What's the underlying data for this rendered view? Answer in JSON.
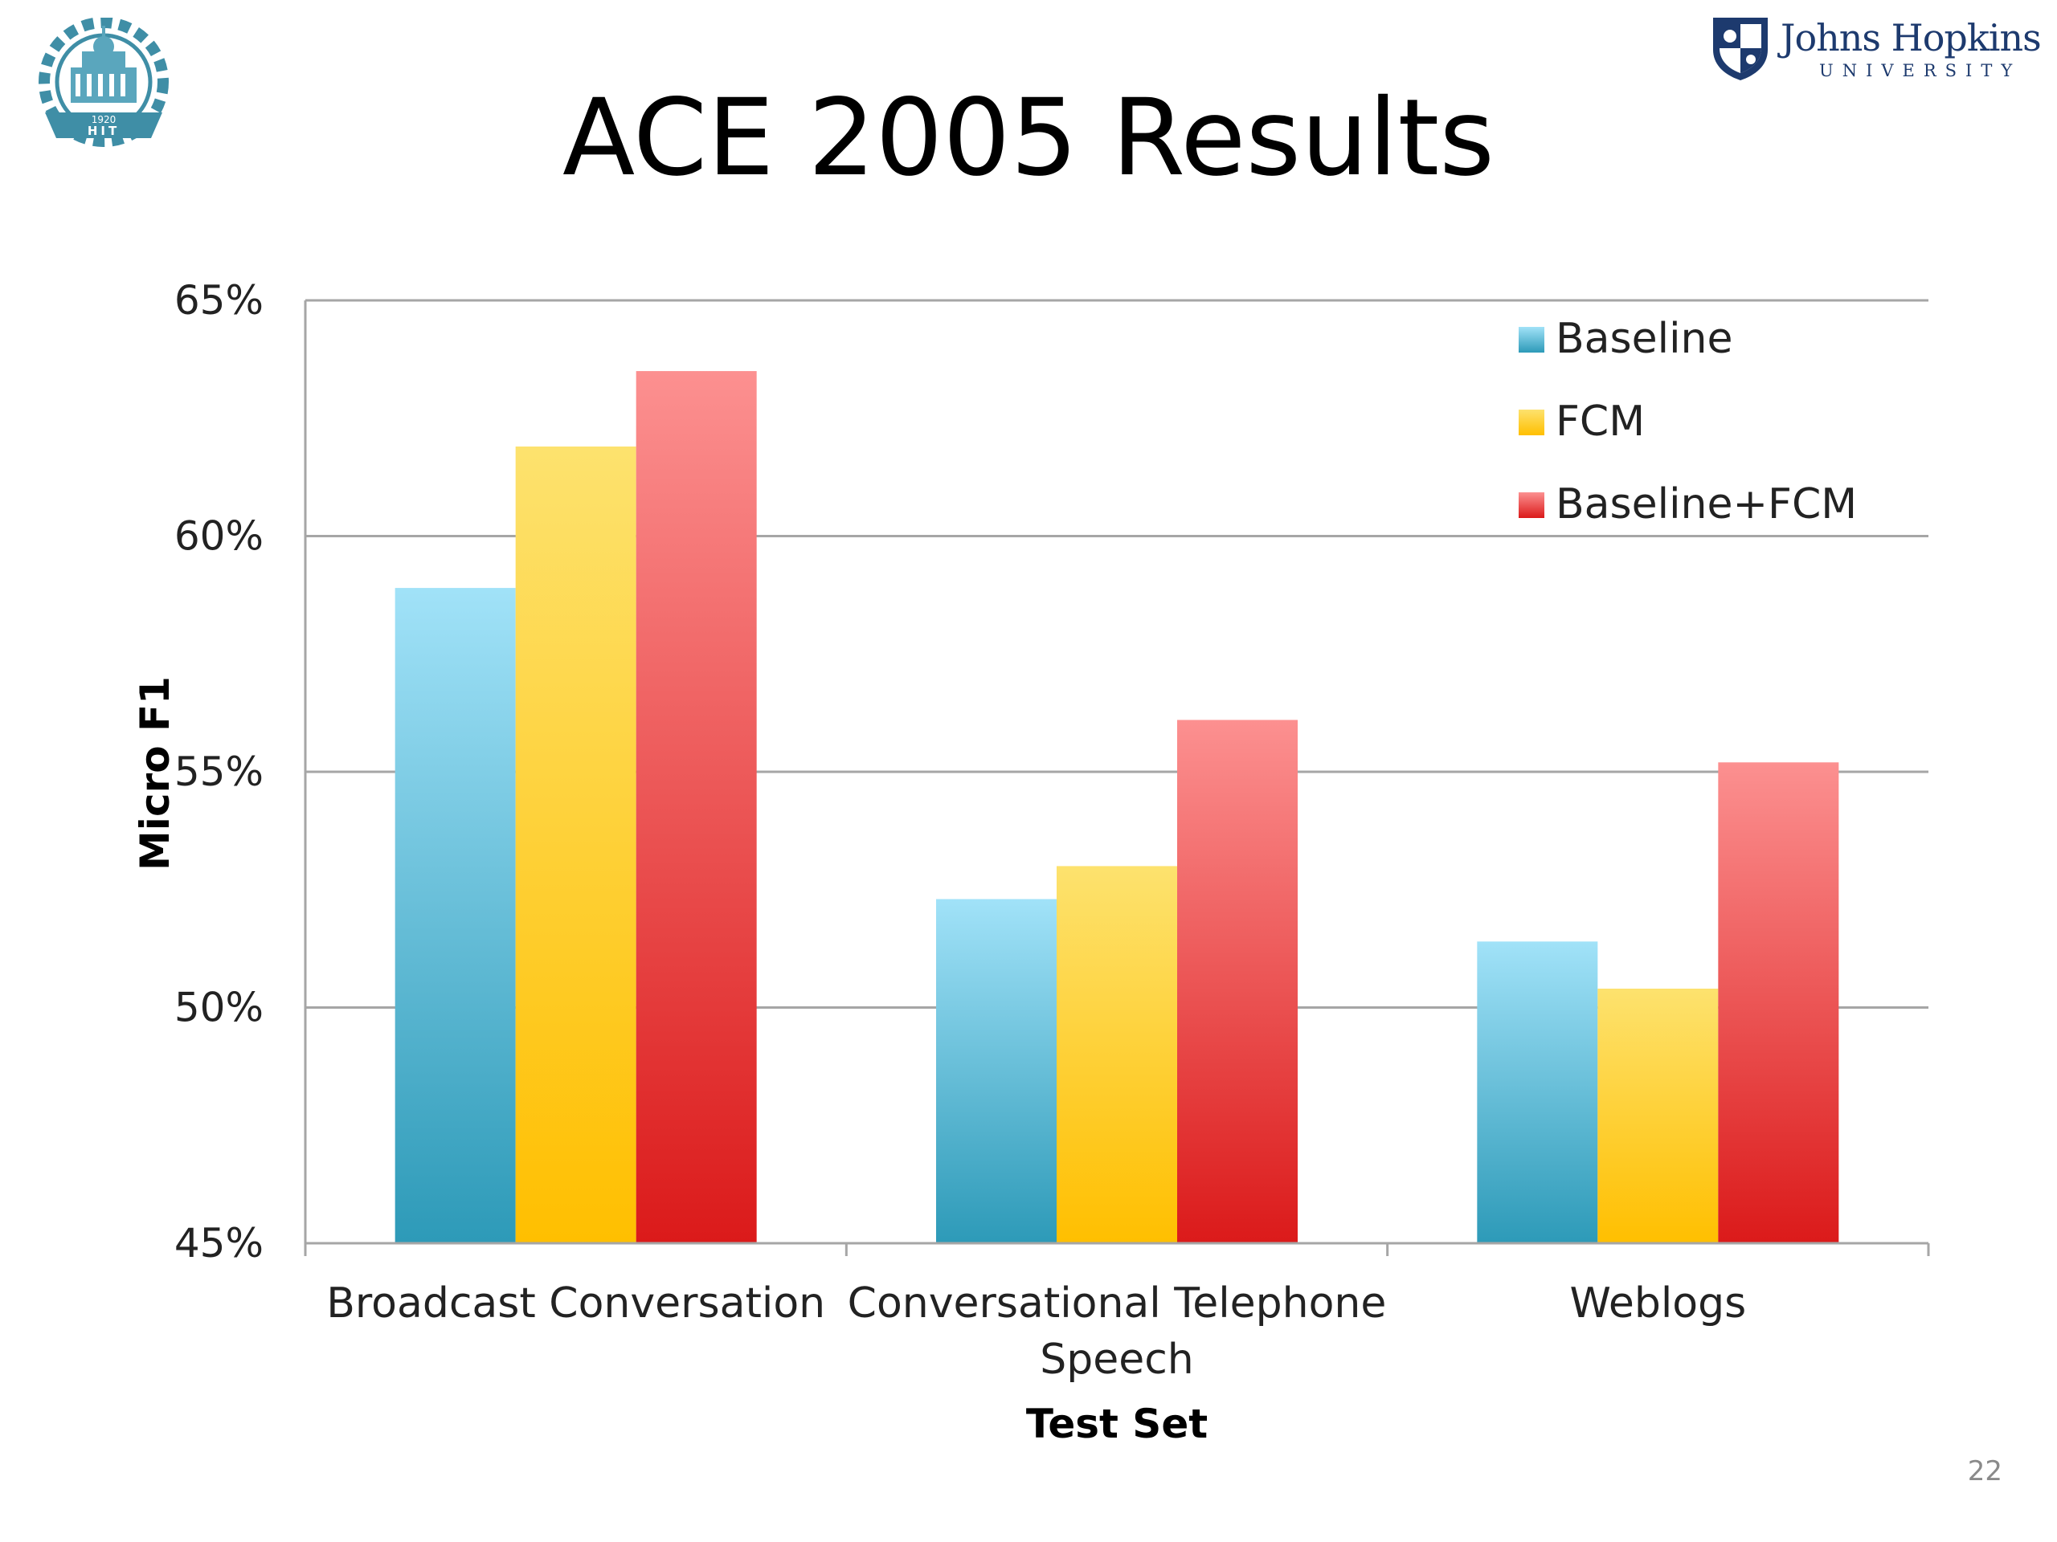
{
  "slide": {
    "title": "ACE 2005 Results",
    "page_number": "22",
    "logos": {
      "left": {
        "name": "HIT",
        "text": "HIT",
        "year": "1920"
      },
      "right": {
        "name": "Johns Hopkins University",
        "line1": "Johns Hopkins",
        "line2": "UNIVERSITY"
      }
    }
  },
  "chart_data": {
    "type": "bar",
    "title": "",
    "xlabel": "Test Set",
    "ylabel": "Micro F1",
    "ylim": [
      45,
      65
    ],
    "yticks": [
      45,
      50,
      55,
      60,
      65
    ],
    "ytick_labels": [
      "45%",
      "50%",
      "55%",
      "60%",
      "65%"
    ],
    "grid": true,
    "legend_position": "top-right",
    "categories": [
      "Broadcast Conversation",
      "Conversational Telephone Speech",
      "Weblogs"
    ],
    "category_lines": [
      [
        "Broadcast Conversation"
      ],
      [
        "Conversational Telephone",
        "Speech"
      ],
      [
        "Weblogs"
      ]
    ],
    "series": [
      {
        "name": "Baseline",
        "values": [
          58.9,
          52.3,
          51.4
        ],
        "color_top": "#a1e2f8",
        "color_bottom": "#2d9ab8"
      },
      {
        "name": "FCM",
        "values": [
          61.9,
          53.0,
          50.4
        ],
        "color_top": "#fde26e",
        "color_bottom": "#ffbf00"
      },
      {
        "name": "Baseline+FCM",
        "values": [
          63.5,
          56.1,
          55.2
        ],
        "color_top": "#fc9090",
        "color_bottom": "#db1a1a"
      }
    ]
  }
}
